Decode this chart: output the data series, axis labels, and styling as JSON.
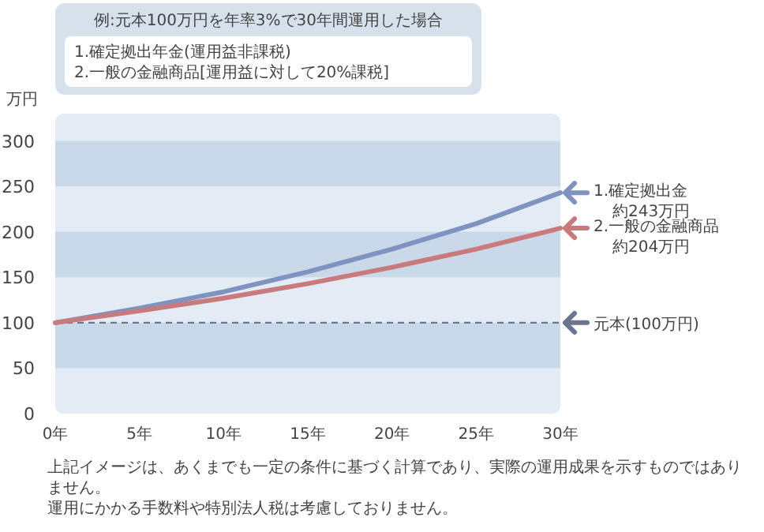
{
  "chart_data": {
    "type": "line",
    "title": "例:元本100万円を年率3%で30年間運用した場合",
    "subtitle": "1.確定拠出年金(運用益非課税)\n2.一般の金融商品[運用益に対して20%課税]",
    "ylabel": "万円",
    "x": [
      0,
      5,
      10,
      15,
      20,
      25,
      30
    ],
    "series": [
      {
        "name": "1.確定拠出金",
        "color": "#7f93c0",
        "values": [
          100,
          116,
          134,
          156,
          181,
          209,
          243
        ]
      },
      {
        "name": "2.一般の金融商品",
        "color": "#c87a7c",
        "values": [
          100,
          113,
          127,
          143,
          161,
          181,
          204
        ]
      }
    ],
    "xlim": [
      0,
      30
    ],
    "xticks": [
      {
        "value": 0,
        "label": "0年"
      },
      {
        "value": 5,
        "label": "5年"
      },
      {
        "value": 10,
        "label": "10年"
      },
      {
        "value": 15,
        "label": "15年"
      },
      {
        "value": 20,
        "label": "20年"
      },
      {
        "value": 25,
        "label": "25年"
      },
      {
        "value": 30,
        "label": "30年"
      }
    ],
    "ylim": [
      0,
      330
    ],
    "yticks": [
      0,
      50,
      100,
      150,
      200,
      250,
      300
    ],
    "bands": [
      {
        "axis": "y",
        "from": 50,
        "to": 100,
        "color": "#cad9ea"
      },
      {
        "axis": "y",
        "from": 150,
        "to": 200,
        "color": "#cad9ea"
      },
      {
        "axis": "y",
        "from": 250,
        "to": 300,
        "color": "#cad9ea"
      }
    ],
    "ref_lines": [
      {
        "axis": "y",
        "value": 100,
        "label": "元本(100万円)",
        "color": "#6a7590",
        "line_style": "dashed"
      }
    ],
    "annotations": [
      "約243万円",
      "約204万円",
      "上記イメージは、あくまでも一定の条件に基づく計算であり、実際の運用成果を示すものではありません。",
      "運用にかかる手数料や特別法人税は考慮しておりません。"
    ],
    "line_style": "solid",
    "marker": "none",
    "legend": "right"
  }
}
